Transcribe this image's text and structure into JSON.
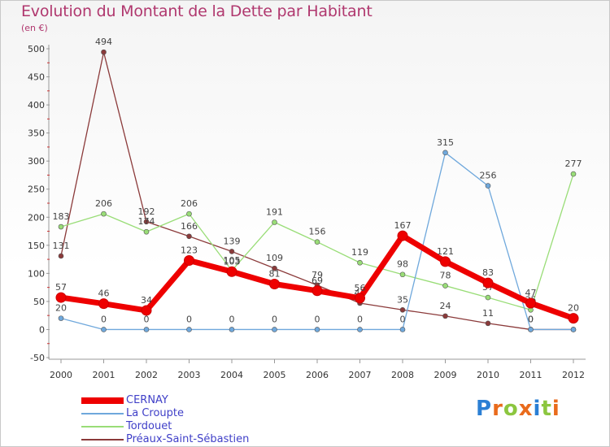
{
  "title": "Evolution du Montant de la Dette par Habitant",
  "subtitle": "(en €)",
  "logo_text": "Proxiti",
  "chart_data": {
    "type": "line",
    "title": "Evolution du Montant de la Dette par Habitant",
    "ylabel": "(en €)",
    "xlabel": "",
    "x": [
      "2000",
      "2001",
      "2002",
      "2003",
      "2004",
      "2005",
      "2006",
      "2007",
      "2008",
      "2009",
      "2010",
      "2011",
      "2012"
    ],
    "yticks": [
      -50,
      0,
      50,
      100,
      150,
      200,
      250,
      300,
      350,
      400,
      450,
      500
    ],
    "ylim": [
      -50,
      500
    ],
    "grid": false,
    "legend": "bottom-left",
    "series": [
      {
        "name": "CERNAY",
        "color": "#ee0000",
        "values": [
          57,
          46,
          34,
          123,
          103,
          81,
          69,
          56,
          167,
          121,
          83,
          47,
          20
        ],
        "labels": [
          "57",
          "46",
          "34",
          "123",
          "103",
          "81",
          "69",
          "56",
          "167",
          "121",
          "83",
          "47",
          "20"
        ]
      },
      {
        "name": "La Croupte",
        "color": "#6fa8dc",
        "values": [
          20,
          0,
          0,
          0,
          0,
          0,
          0,
          0,
          0,
          315,
          256,
          0,
          0
        ],
        "labels": [
          "20",
          "0",
          "0",
          "0",
          "0",
          "0",
          "0",
          "0",
          "0",
          "315",
          "256",
          "0",
          "0"
        ]
      },
      {
        "name": "Tordouet",
        "color": "#99dd77",
        "values": [
          183,
          206,
          174,
          206,
          105,
          191,
          156,
          119,
          98,
          78,
          57,
          35,
          277
        ],
        "labels": [
          "183",
          "206",
          "174",
          "206",
          "105",
          "191",
          "156",
          "119",
          "98",
          "78",
          "57",
          "35",
          "277"
        ]
      },
      {
        "name": "Préaux-Saint-Sébastien",
        "color": "#8b3a3a",
        "values": [
          131,
          494,
          192,
          166,
          139,
          109,
          79,
          47,
          35,
          24,
          11,
          0,
          0
        ],
        "labels": [
          "131",
          "494",
          "192",
          "166",
          "139",
          "109",
          "79",
          "47",
          "35",
          "24",
          "11",
          "0",
          "0"
        ]
      }
    ]
  }
}
